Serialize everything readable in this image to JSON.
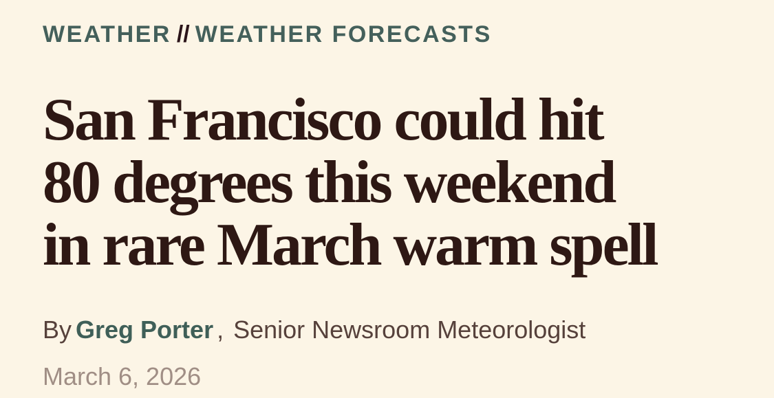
{
  "theme": {
    "background_color": "#fcf5e6",
    "breadcrumb_color": "#44605b",
    "breadcrumb_separator_color": "#2b151a",
    "headline_color": "#2e1814",
    "byline_text_color": "#56413b",
    "author_link_color": "#3f5f58",
    "date_color": "#a08e85"
  },
  "breadcrumb": {
    "section": "WEATHER",
    "separator": "//",
    "subsection": "WEATHER FORECASTS"
  },
  "article": {
    "headline": "San Francisco could hit 80 degrees this weekend in rare March warm spell",
    "headline_lines": [
      "San Francisco could hit",
      "80 degrees this weekend",
      "in rare March warm spell"
    ],
    "byline_prefix": "By",
    "author": "Greg Porter",
    "byline_separator": ",",
    "author_title": "Senior Newsroom Meteorologist",
    "date": "March 6, 2026"
  }
}
